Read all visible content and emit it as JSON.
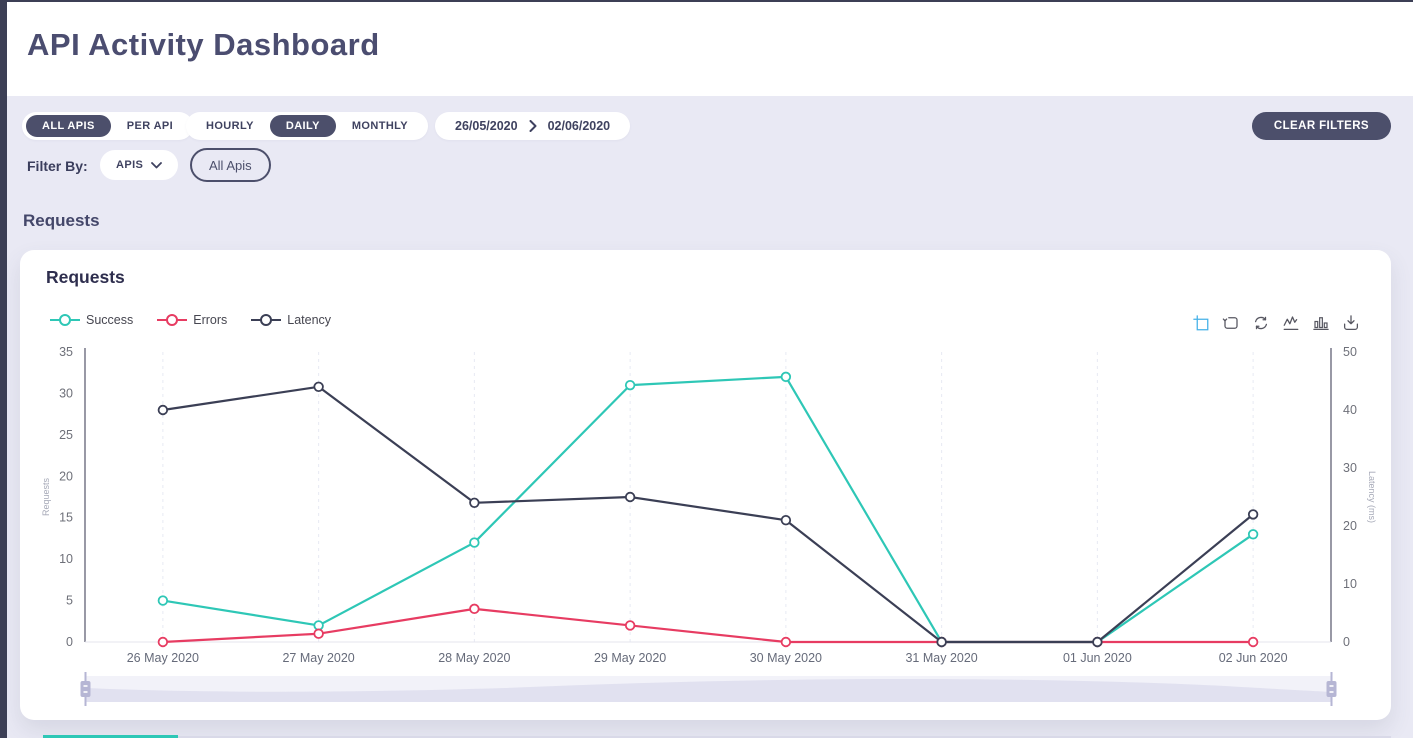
{
  "theme": {
    "primary_dark": "#4c4f6b",
    "page_background": "#e9e9f4",
    "card_background": "#ffffff",
    "accent_teal": "#2ec7b6",
    "toolbox_active_color": "#45b1e8",
    "toolbox_icon_color": "#565660"
  },
  "header": {
    "title": "API Activity Dashboard"
  },
  "filters": {
    "api_scope": {
      "options": [
        "ALL APIS",
        "PER API"
      ],
      "selected": "ALL APIS"
    },
    "granularity": {
      "options": [
        "HOURLY",
        "DAILY",
        "MONTHLY"
      ],
      "selected": "DAILY"
    },
    "date_range": {
      "start": "26/05/2020",
      "end": "02/06/2020"
    },
    "clear_button": "CLEAR FILTERS",
    "filter_by_label": "Filter By:",
    "api_select": {
      "value": "APIS"
    },
    "api_chip": "All Apis"
  },
  "section_heading": "Requests",
  "card": {
    "title": "Requests"
  },
  "toolbox": {
    "items": [
      "area-zoom",
      "zoom-reset",
      "restore",
      "line-chart",
      "bar-chart",
      "save-image"
    ]
  },
  "chart_data": {
    "type": "line",
    "categories": [
      "26 May 2020",
      "27 May 2020",
      "28 May 2020",
      "29 May 2020",
      "30 May 2020",
      "31 May 2020",
      "01 Jun 2020",
      "02 Jun 2020"
    ],
    "series": [
      {
        "name": "Success",
        "color": "#2ec7b6",
        "axis": "left",
        "values": [
          5,
          2,
          12,
          31,
          32,
          0,
          0,
          13
        ]
      },
      {
        "name": "Errors",
        "color": "#e73c62",
        "axis": "left",
        "values": [
          0,
          1,
          4,
          2,
          0,
          0,
          0,
          0
        ]
      },
      {
        "name": "Latency",
        "color": "#3b3f55",
        "axis": "right",
        "values": [
          40,
          44,
          24,
          25,
          21,
          0,
          0,
          22
        ]
      }
    ],
    "left_axis": {
      "label": "Requests",
      "ticks": [
        0,
        5,
        10,
        15,
        20,
        25,
        30,
        35
      ],
      "max": 35
    },
    "right_axis": {
      "label": "Latency (ms)",
      "ticks": [
        0,
        10,
        20,
        30,
        40,
        50
      ],
      "max": 50
    },
    "legend": [
      "Success",
      "Errors",
      "Latency"
    ],
    "legend_position": "top-left",
    "grid": "vertical-dashed"
  }
}
